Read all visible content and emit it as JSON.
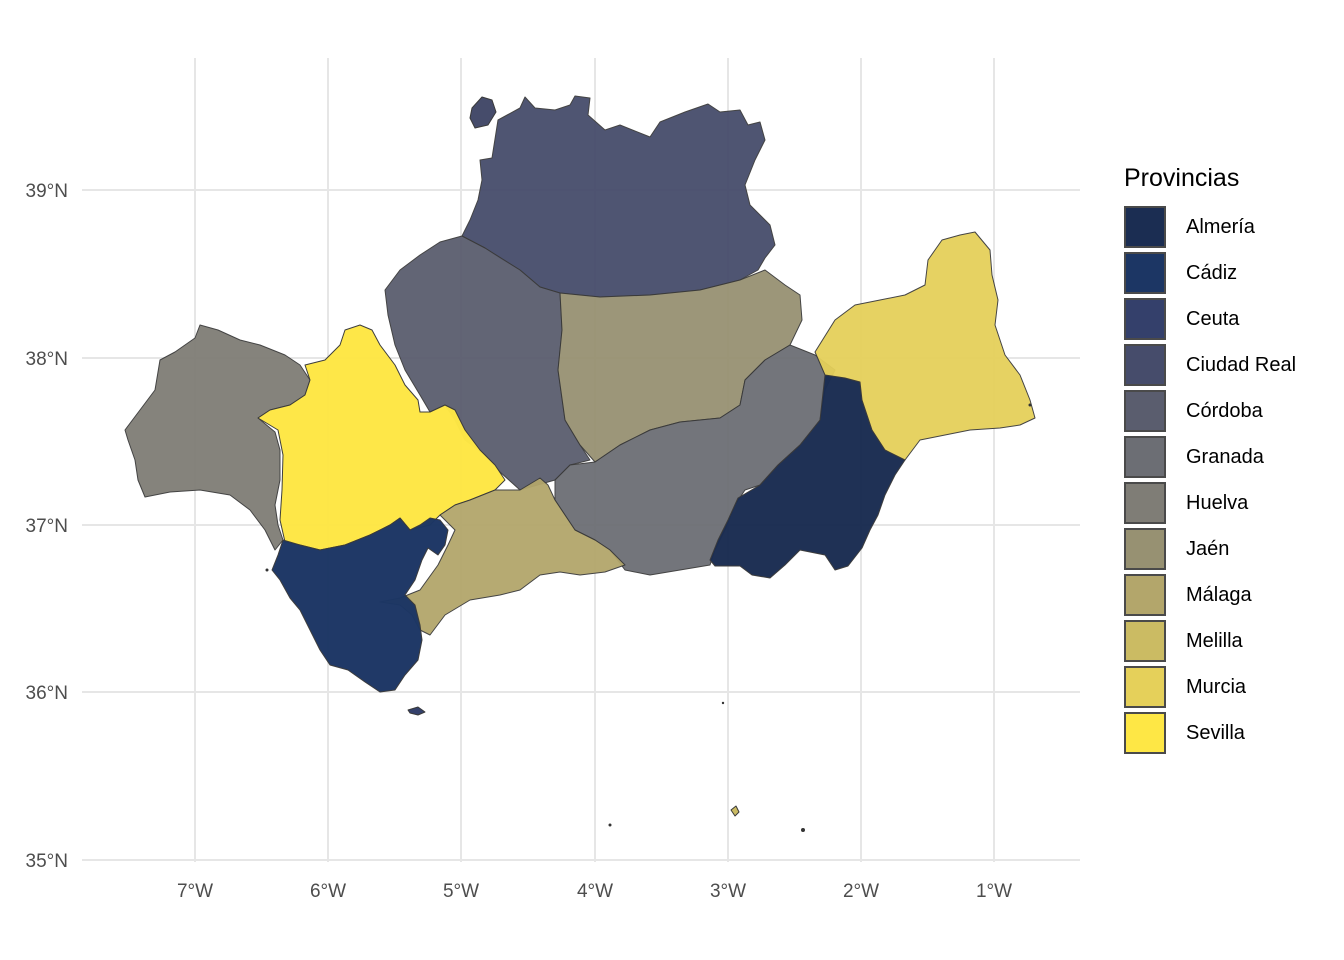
{
  "legend": {
    "title": "Provincias",
    "items": [
      {
        "label": "Almería",
        "color": "#1b2d52"
      },
      {
        "label": "Cádiz",
        "color": "#1c3664"
      },
      {
        "label": "Ceuta",
        "color": "#34406b"
      },
      {
        "label": "Ciudad Real",
        "color": "#464c6b"
      },
      {
        "label": "Córdoba",
        "color": "#5a5d6e"
      },
      {
        "label": "Granada",
        "color": "#6c6e74"
      },
      {
        "label": "Huelva",
        "color": "#7f7d76"
      },
      {
        "label": "Jaén",
        "color": "#979172"
      },
      {
        "label": "Málaga",
        "color": "#b3a66b"
      },
      {
        "label": "Melilla",
        "color": "#cbbb63"
      },
      {
        "label": "Murcia",
        "color": "#e5d05a"
      },
      {
        "label": "Sevilla",
        "color": "#fee745"
      }
    ]
  },
  "axes": {
    "x_ticks": [
      "7°W",
      "6°W",
      "5°W",
      "4°W",
      "3°W",
      "2°W",
      "1°W"
    ],
    "y_ticks": [
      "39°N",
      "38°N",
      "37°N",
      "36°N",
      "35°N"
    ]
  }
}
